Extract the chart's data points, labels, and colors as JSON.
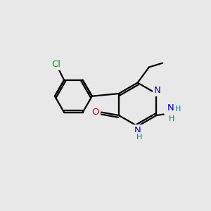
{
  "background_color": "#e8e8e8",
  "bond_color": "#000000",
  "atom_colors": {
    "N": "#0000cc",
    "O": "#dd0000",
    "Cl": "#00aa00",
    "C": "#000000",
    "H": "#008080"
  },
  "line_width": 1.6,
  "figsize": [
    3.0,
    3.0
  ],
  "dpi": 100
}
